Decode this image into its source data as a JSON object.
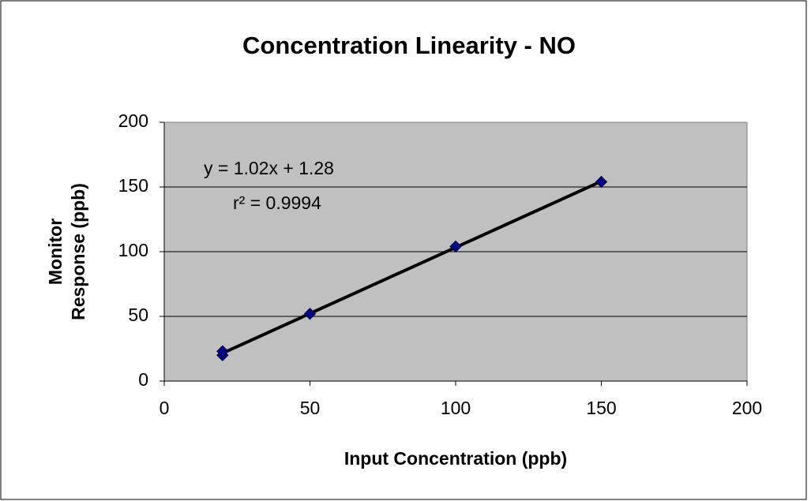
{
  "chart_data": {
    "type": "scatter",
    "title": "Concentration Linearity - NO",
    "xlabel": "Input Concentration (ppb)",
    "ylabel": [
      "Monitor",
      "Response (ppb)"
    ],
    "annotations": [
      "y = 1.02x + 1.28",
      "r² = 0.9994"
    ],
    "series": [
      {
        "color": "#000080",
        "x": [
          20,
          20,
          50,
          100,
          150
        ],
        "values": [
          20,
          23,
          52,
          104,
          154
        ]
      }
    ],
    "trendline": true,
    "xlim": [
      0,
      200
    ],
    "xticks": [
      0,
      50,
      100,
      150,
      200
    ],
    "ylim": [
      0,
      200
    ],
    "yticks": [
      0,
      50,
      100,
      150,
      200
    ],
    "grid": true
  }
}
